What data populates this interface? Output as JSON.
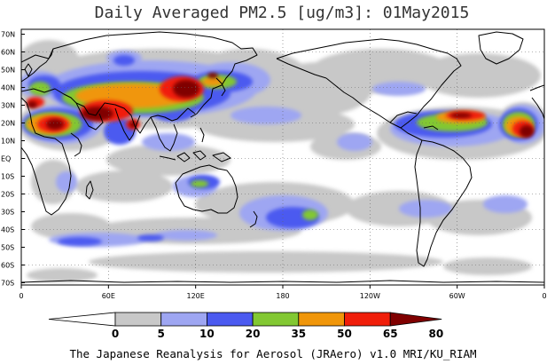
{
  "title": "Daily Averaged PM2.5 [ug/m3]: 01May2015",
  "credit": "The Japanese Reanalysis for Aerosol (JRAero) v1.0 MRI/KU_RIAM",
  "lat_labels": [
    "70N",
    "60N",
    "50N",
    "40N",
    "30N",
    "20N",
    "10N",
    "EQ",
    "10S",
    "20S",
    "30S",
    "40S",
    "50S",
    "60S",
    "70S"
  ],
  "lon_labels": [
    "0",
    "60E",
    "120E",
    "180",
    "120W",
    "60W",
    "0"
  ],
  "colorbar": {
    "levels": [
      "0",
      "5",
      "10",
      "20",
      "35",
      "50",
      "65",
      "80"
    ],
    "colors": [
      "#ffffff",
      "#c8c8c8",
      "#9ea6f2",
      "#4b5af0",
      "#82c832",
      "#f0960a",
      "#f01e0a",
      "#800000"
    ]
  }
}
